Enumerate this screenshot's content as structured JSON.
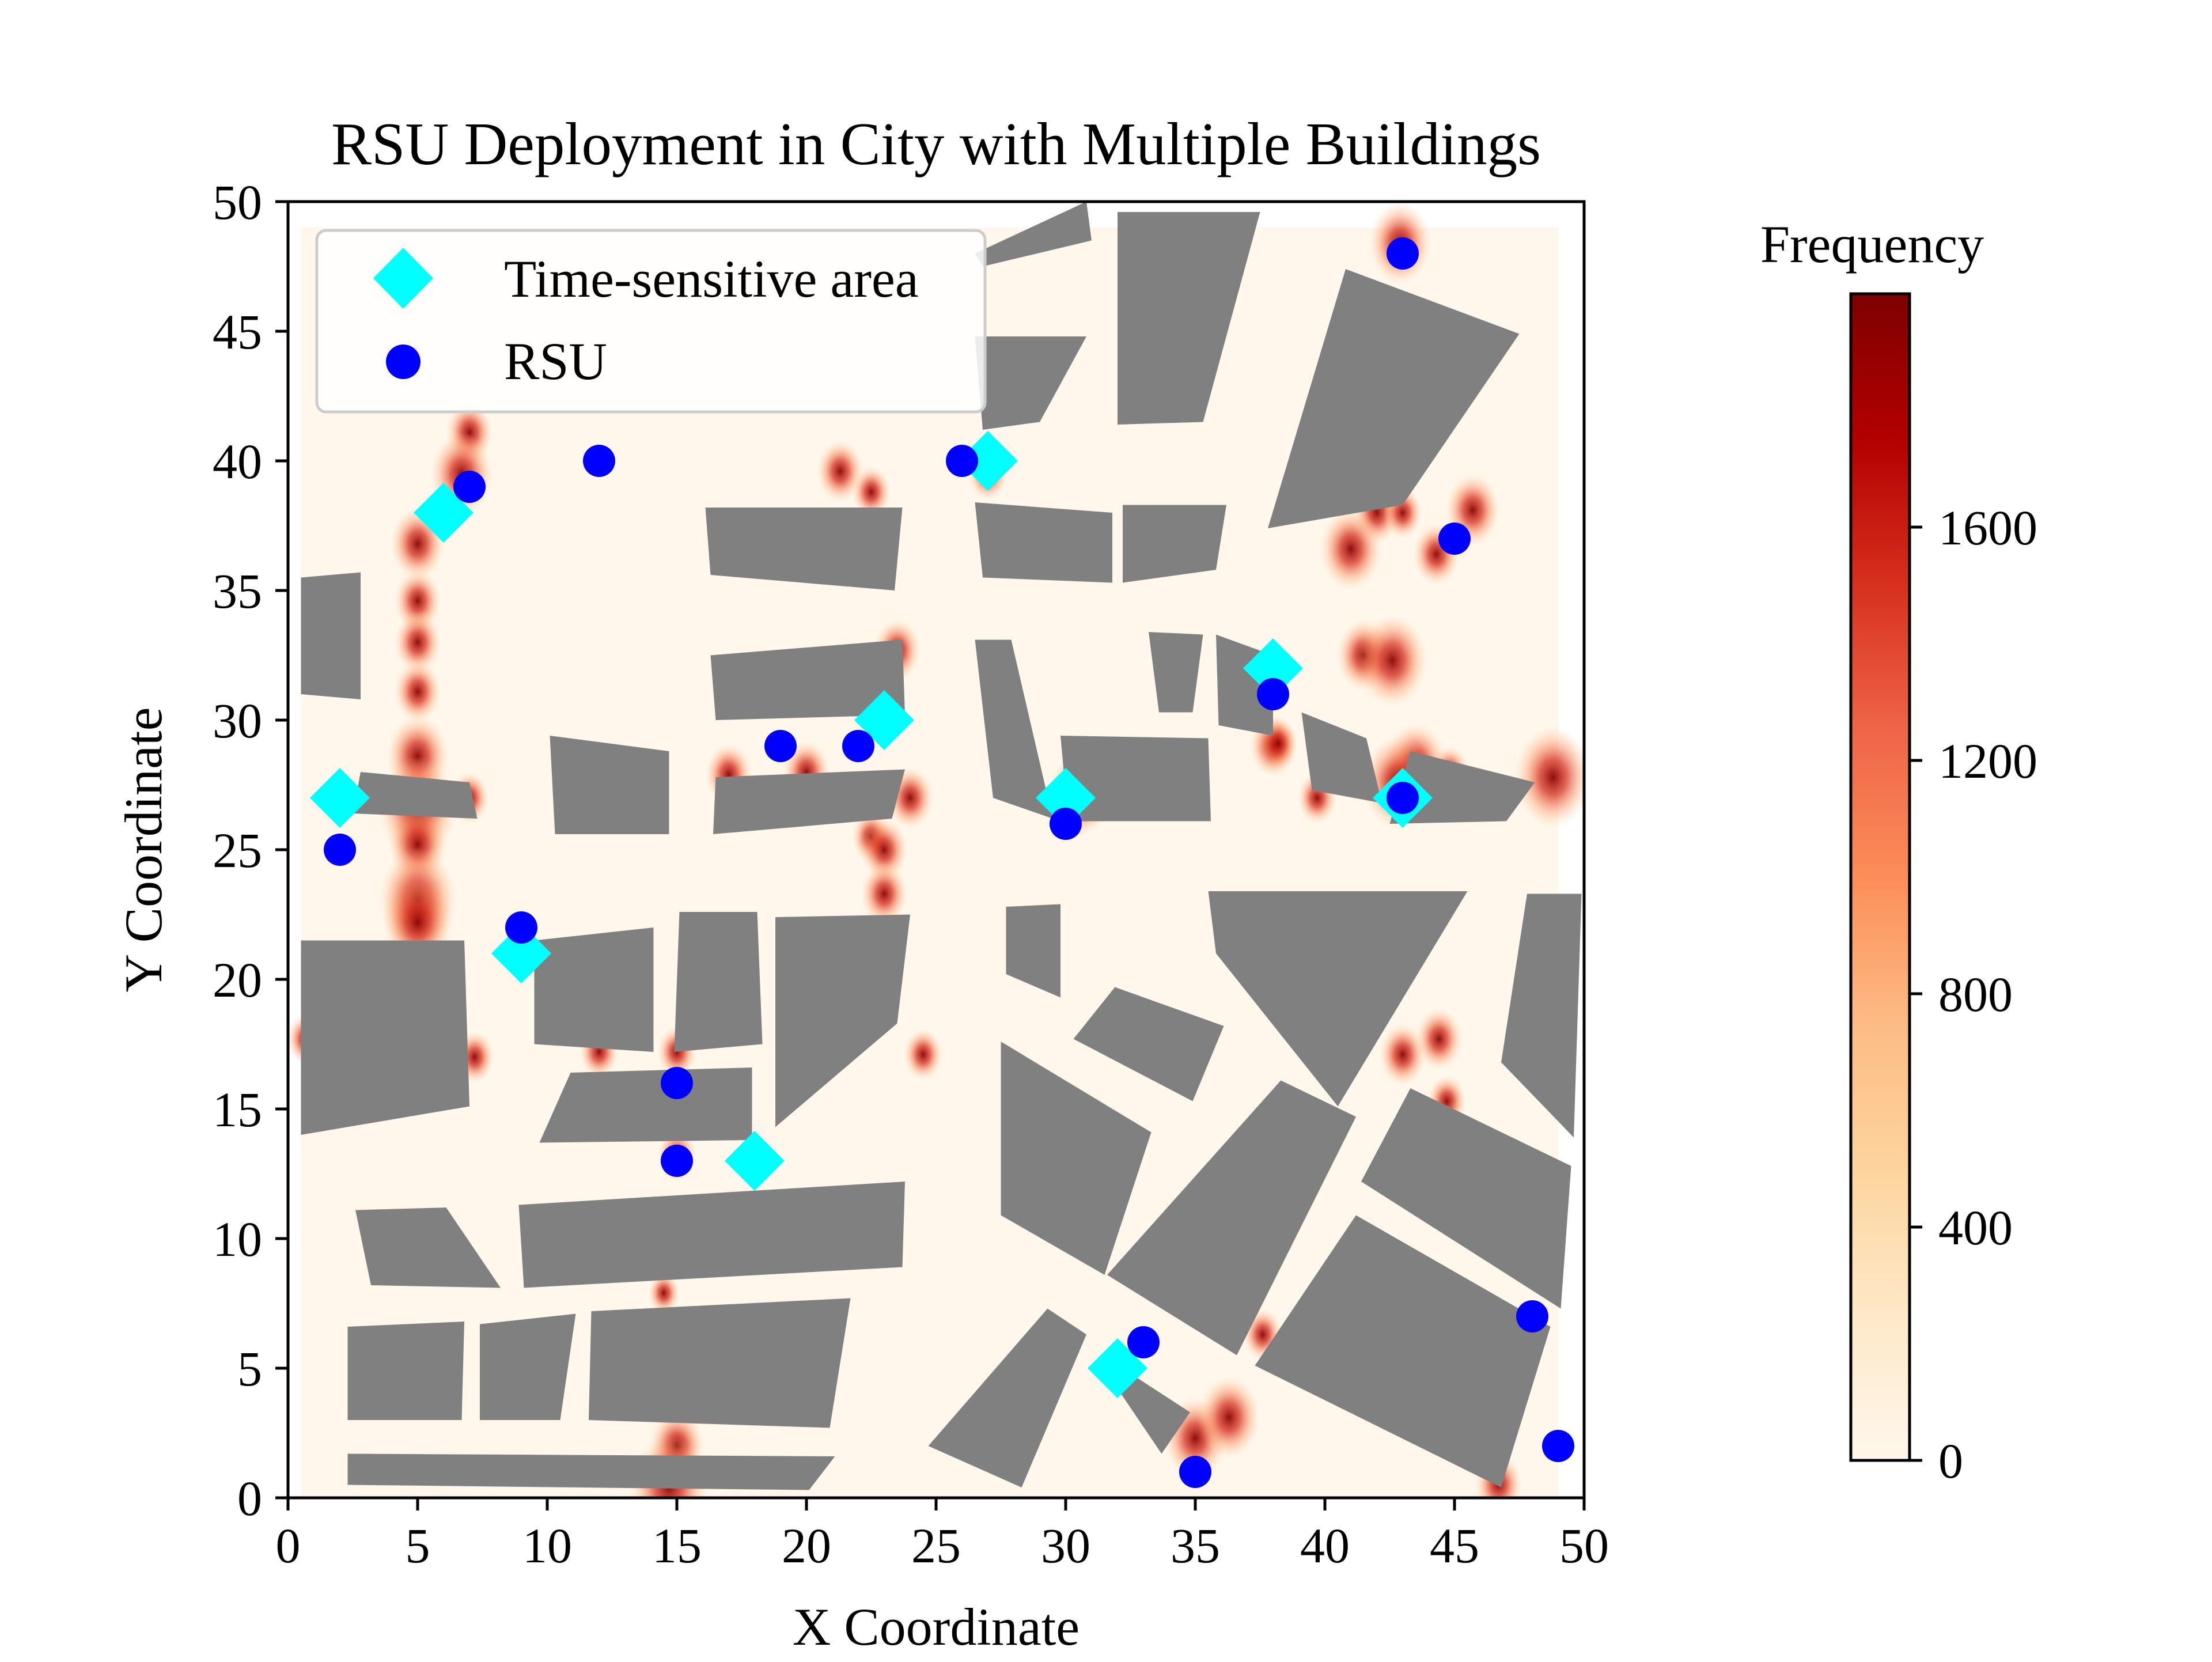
{
  "chart_data": {
    "type": "scatter",
    "title": "RSU Deployment in City with Multiple Buildings",
    "xlabel": "X Coordinate",
    "ylabel": "Y Coordinate",
    "xlim": [
      0,
      50
    ],
    "ylim": [
      0,
      50
    ],
    "xticks": [
      0,
      5,
      10,
      15,
      20,
      25,
      30,
      35,
      40,
      45,
      50
    ],
    "yticks": [
      0,
      5,
      10,
      15,
      20,
      25,
      30,
      35,
      40,
      45,
      50
    ],
    "grid": false,
    "legend": {
      "placement": "top-left",
      "entries": [
        {
          "label": "Time-sensitive area",
          "marker": "diamond",
          "color": "#00ffff"
        },
        {
          "label": "RSU",
          "marker": "circle",
          "color": "#0000ff"
        }
      ]
    },
    "colorbar": {
      "label": "Frequency",
      "colormap": "OrRd",
      "range": [
        0,
        2000
      ],
      "ticks": [
        0,
        400,
        800,
        1200,
        1600
      ]
    },
    "colors": {
      "time_sensitive": "#00ffff",
      "rsu": "#0000ff",
      "building": "#808080",
      "heat_low": "#fff7ec",
      "heat_high": "#7f0000"
    },
    "series": [
      {
        "name": "Time-sensitive area",
        "marker": "diamond",
        "points": [
          [
            6,
            38
          ],
          [
            2,
            27
          ],
          [
            9,
            21
          ],
          [
            18,
            13
          ],
          [
            23,
            30
          ],
          [
            27,
            40
          ],
          [
            30,
            27
          ],
          [
            38,
            32
          ],
          [
            43,
            27
          ],
          [
            32,
            5
          ]
        ]
      },
      {
        "name": "RSU",
        "marker": "circle",
        "points": [
          [
            7,
            39
          ],
          [
            12,
            40
          ],
          [
            2,
            25
          ],
          [
            9,
            22
          ],
          [
            15,
            16
          ],
          [
            15,
            13
          ],
          [
            19,
            29
          ],
          [
            22,
            29
          ],
          [
            26,
            40
          ],
          [
            30,
            26
          ],
          [
            38,
            31
          ],
          [
            43,
            48
          ],
          [
            45,
            37
          ],
          [
            43,
            27
          ],
          [
            33,
            6
          ],
          [
            35,
            1
          ],
          [
            48,
            7
          ],
          [
            49,
            2
          ]
        ]
      }
    ],
    "buildings": [
      [
        [
          26.5,
          48
        ],
        [
          30.8,
          50
        ],
        [
          31,
          48.5
        ],
        [
          26.8,
          47.5
        ]
      ],
      [
        [
          26.5,
          44.8
        ],
        [
          30.8,
          44.8
        ],
        [
          29,
          41.5
        ],
        [
          26.8,
          41.2
        ]
      ],
      [
        [
          32,
          49.6
        ],
        [
          37.5,
          49.6
        ],
        [
          35.3,
          41.5
        ],
        [
          32,
          41.4
        ]
      ],
      [
        [
          40.8,
          47.4
        ],
        [
          47.5,
          44.9
        ],
        [
          43,
          38.3
        ],
        [
          37.8,
          37.4
        ]
      ],
      [
        [
          16.1,
          38.2
        ],
        [
          23.7,
          38.2
        ],
        [
          23.4,
          35
        ],
        [
          16.3,
          35.6
        ]
      ],
      [
        [
          26.5,
          38.4
        ],
        [
          31.8,
          38
        ],
        [
          31.8,
          35.3
        ],
        [
          26.8,
          35.5
        ]
      ],
      [
        [
          32.2,
          38.3
        ],
        [
          36.2,
          38.3
        ],
        [
          35.8,
          35.8
        ],
        [
          32.2,
          35.3
        ]
      ],
      [
        [
          0.5,
          35.5
        ],
        [
          2.8,
          35.7
        ],
        [
          2.8,
          30.8
        ],
        [
          0.5,
          31
        ]
      ],
      [
        [
          16.3,
          32.5
        ],
        [
          23.7,
          33.1
        ],
        [
          23.8,
          30.2
        ],
        [
          16.5,
          30
        ]
      ],
      [
        [
          26.5,
          33.1
        ],
        [
          27.9,
          33.1
        ],
        [
          29.5,
          26.2
        ],
        [
          27.2,
          27
        ]
      ],
      [
        [
          33.2,
          33.4
        ],
        [
          35.3,
          33.3
        ],
        [
          34.9,
          30.3
        ],
        [
          33.6,
          30.3
        ]
      ],
      [
        [
          35.8,
          33.3
        ],
        [
          38,
          32.5
        ],
        [
          38,
          29.4
        ],
        [
          35.9,
          29.8
        ]
      ],
      [
        [
          39.1,
          30.3
        ],
        [
          41.6,
          29.3
        ],
        [
          42.2,
          26.8
        ],
        [
          39.5,
          27.3
        ]
      ],
      [
        [
          43.3,
          28.8
        ],
        [
          48.1,
          27.6
        ],
        [
          47,
          26.1
        ],
        [
          42.5,
          26
        ]
      ],
      [
        [
          10.1,
          29.4
        ],
        [
          14.7,
          28.8
        ],
        [
          14.7,
          25.6
        ],
        [
          10.3,
          25.6
        ]
      ],
      [
        [
          29.8,
          29.4
        ],
        [
          35.5,
          29.3
        ],
        [
          35.6,
          26.1
        ],
        [
          30.1,
          26.1
        ]
      ],
      [
        [
          2.8,
          28
        ],
        [
          7,
          27.6
        ],
        [
          7.3,
          26.2
        ],
        [
          2.5,
          26.4
        ]
      ],
      [
        [
          16.5,
          27.8
        ],
        [
          23.8,
          28.1
        ],
        [
          23.3,
          26.2
        ],
        [
          16.4,
          25.6
        ]
      ],
      [
        [
          27.7,
          22.8
        ],
        [
          29.8,
          22.9
        ],
        [
          29.8,
          19.3
        ],
        [
          27.7,
          20.2
        ]
      ],
      [
        [
          0.5,
          21.5
        ],
        [
          6.8,
          21.5
        ],
        [
          7,
          15.1
        ],
        [
          0.5,
          14
        ]
      ],
      [
        [
          9.5,
          21.5
        ],
        [
          14.1,
          22
        ],
        [
          14.1,
          17.2
        ],
        [
          9.5,
          17.5
        ]
      ],
      [
        [
          15.1,
          22.6
        ],
        [
          18.1,
          22.6
        ],
        [
          18.3,
          17.5
        ],
        [
          14.9,
          17.2
        ]
      ],
      [
        [
          18.8,
          22.4
        ],
        [
          24,
          22.5
        ],
        [
          23.5,
          18.3
        ],
        [
          18.8,
          14.3
        ]
      ],
      [
        [
          35.5,
          23.4
        ],
        [
          45.5,
          23.4
        ],
        [
          40.5,
          15.1
        ],
        [
          35.8,
          21
        ]
      ],
      [
        [
          47.8,
          23.3
        ],
        [
          49.9,
          23.3
        ],
        [
          49.6,
          13.9
        ],
        [
          46.8,
          16.8
        ]
      ],
      [
        [
          31.9,
          19.7
        ],
        [
          36.1,
          18.2
        ],
        [
          34.9,
          15.3
        ],
        [
          30.3,
          17.7
        ]
      ],
      [
        [
          10.9,
          16.4
        ],
        [
          17.9,
          16.6
        ],
        [
          17.9,
          13.8
        ],
        [
          9.7,
          13.7
        ]
      ],
      [
        [
          27.5,
          17.6
        ],
        [
          33.3,
          14.1
        ],
        [
          31.5,
          8.6
        ],
        [
          27.5,
          10.9
        ]
      ],
      [
        [
          38.3,
          16.1
        ],
        [
          41.2,
          14.7
        ],
        [
          36.6,
          5.5
        ],
        [
          31.6,
          8.6
        ]
      ],
      [
        [
          43.3,
          15.8
        ],
        [
          49.5,
          12.8
        ],
        [
          49.1,
          7.3
        ],
        [
          41.4,
          12.2
        ]
      ],
      [
        [
          2.6,
          11.1
        ],
        [
          6.1,
          11.2
        ],
        [
          8.2,
          8.1
        ],
        [
          3.2,
          8.2
        ]
      ],
      [
        [
          8.9,
          11.3
        ],
        [
          23.8,
          12.2
        ],
        [
          23.7,
          8.9
        ],
        [
          9.1,
          8.1
        ]
      ],
      [
        [
          41.2,
          10.9
        ],
        [
          48.7,
          6.6
        ],
        [
          46.8,
          0.4
        ],
        [
          37.3,
          5.1
        ]
      ],
      [
        [
          29.3,
          7.3
        ],
        [
          30.8,
          6.3
        ],
        [
          28.3,
          0.4
        ],
        [
          24.7,
          2
        ]
      ],
      [
        [
          2.3,
          6.6
        ],
        [
          6.8,
          6.8
        ],
        [
          6.7,
          3
        ],
        [
          2.3,
          3
        ]
      ],
      [
        [
          7.4,
          6.7
        ],
        [
          11.1,
          7.1
        ],
        [
          10.5,
          3
        ],
        [
          7.4,
          3
        ]
      ],
      [
        [
          11.7,
          7.2
        ],
        [
          21.7,
          7.7
        ],
        [
          20.9,
          2.7
        ],
        [
          11.6,
          3
        ]
      ],
      [
        [
          31.4,
          5.1
        ],
        [
          32.8,
          4.6
        ],
        [
          34.8,
          3.3
        ],
        [
          33.7,
          1.7
        ]
      ],
      [
        [
          2.3,
          1.7
        ],
        [
          21.1,
          1.6
        ],
        [
          20.1,
          0.3
        ],
        [
          2.3,
          0.5
        ]
      ]
    ],
    "hotspots": [
      [
        7,
        41.1,
        1.2
      ],
      [
        6.7,
        39.5,
        1.6
      ],
      [
        5,
        36.8,
        1.4
      ],
      [
        5,
        34.6,
        1.2
      ],
      [
        5,
        33,
        1.2
      ],
      [
        5,
        31.1,
        1.2
      ],
      [
        5,
        28.6,
        1.6
      ],
      [
        5,
        26.6,
        2.0
      ],
      [
        5,
        25.2,
        1.5
      ],
      [
        5,
        23.1,
        2.0
      ],
      [
        5,
        22.2,
        1.8
      ],
      [
        9,
        21,
        1.0
      ],
      [
        7,
        27,
        1.0
      ],
      [
        7.2,
        17,
        1.0
      ],
      [
        0.7,
        17.7,
        1.0
      ],
      [
        12,
        17.2,
        1.0
      ],
      [
        15,
        17.2,
        1.0
      ],
      [
        15,
        13.2,
        1.0
      ],
      [
        14.5,
        7.9,
        0.8
      ],
      [
        15,
        2,
        1.4
      ],
      [
        14.7,
        0.4,
        2.0
      ],
      [
        17,
        27.9,
        1.2
      ],
      [
        20,
        28,
        1.2
      ],
      [
        23.5,
        32.7,
        1.2
      ],
      [
        22.5,
        25.5,
        1.0
      ],
      [
        23,
        25,
        1.2
      ],
      [
        23,
        23.3,
        1.2
      ],
      [
        24,
        27,
        1.2
      ],
      [
        24.5,
        17.1,
        1.0
      ],
      [
        21.3,
        39.6,
        1.2
      ],
      [
        22.5,
        38.8,
        1.0
      ],
      [
        27,
        39.5,
        1.0
      ],
      [
        31,
        27.5,
        1.6
      ],
      [
        30.5,
        27.1,
        1.6
      ],
      [
        38,
        29,
        1.2
      ],
      [
        38.2,
        29.1,
        1.0
      ],
      [
        39.7,
        27,
        1.0
      ],
      [
        41.5,
        32.5,
        1.4
      ],
      [
        42.6,
        32.3,
        1.8
      ],
      [
        43.5,
        28.3,
        1.6
      ],
      [
        42.8,
        27.6,
        1.8
      ],
      [
        44.8,
        28,
        1.0
      ],
      [
        48.8,
        27.8,
        2.0
      ],
      [
        42,
        38,
        1.2
      ],
      [
        43,
        38,
        1.0
      ],
      [
        45.7,
        38.1,
        1.4
      ],
      [
        41,
        36.6,
        1.6
      ],
      [
        44.3,
        36.4,
        1.2
      ],
      [
        42.9,
        48.4,
        1.6
      ],
      [
        40.3,
        17.2,
        1.0
      ],
      [
        43,
        17.1,
        1.2
      ],
      [
        44.4,
        17.7,
        1.2
      ],
      [
        44.7,
        15.3,
        1.0
      ],
      [
        35,
        2.3,
        1.6
      ],
      [
        36.3,
        3.1,
        1.6
      ],
      [
        46.7,
        0.5,
        1.2
      ],
      [
        37.6,
        6.3,
        1.0
      ]
    ]
  }
}
